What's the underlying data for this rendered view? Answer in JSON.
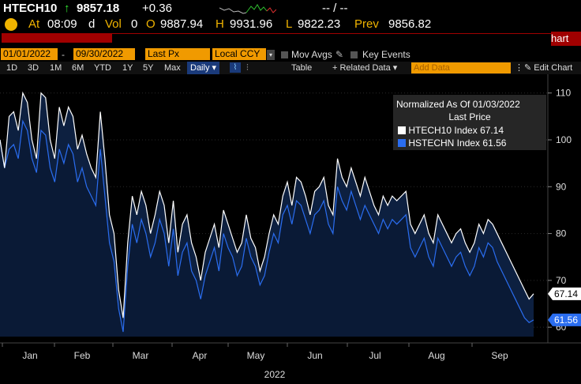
{
  "header": {
    "ticker": "HTECH10",
    "arrow": "↑",
    "price": "9857.18",
    "change": "+0.36",
    "bid_ask": "-- / --",
    "at_label": "At",
    "time": "08:09",
    "time_suffix": "d",
    "vol_label": "Vol",
    "vol_value": "0",
    "open_label": "O",
    "open_value": "9887.94",
    "high_label": "H",
    "high_value": "9931.96",
    "low_label": "L",
    "low_value": "9822.23",
    "prev_label": "Prev",
    "prev_value": "9856.82",
    "tab_right": "hart"
  },
  "toolbar": {
    "start_date": "01/01/2022",
    "end_date": "09/30/2022",
    "price_field": "Last Px",
    "currency": "Local CCY",
    "mov_avgs": "Mov Avgs",
    "key_events": "Key Events",
    "periods": [
      "1D",
      "3D",
      "1M",
      "6M",
      "YTD",
      "1Y",
      "5Y",
      "Max"
    ],
    "frequency": "Daily",
    "table": "Table",
    "related_data": "+ Related Data",
    "add_data_placeholder": "Add Data",
    "edit_chart": "Edit Chart"
  },
  "chart_data": {
    "type": "area",
    "title": "Normalized As Of 01/03/2022",
    "subtitle": "Last Price",
    "xlabel": "2022",
    "ylabel": "",
    "ylim": [
      58,
      114
    ],
    "y_ticks": [
      60,
      70,
      80,
      90,
      100,
      110
    ],
    "x_tick_labels": [
      "Jan",
      "Feb",
      "Mar",
      "Apr",
      "May",
      "Jun",
      "Jul",
      "Aug",
      "Sep"
    ],
    "legend_position": "top-right",
    "series": [
      {
        "name": "HTECH10 Index",
        "color": "#ffffff",
        "last_value": "67.14",
        "values": [
          100,
          94,
          105,
          106,
          102,
          110,
          108,
          100,
          96,
          110,
          109,
          100,
          96,
          107,
          103,
          107,
          105,
          98,
          101,
          97,
          94,
          92,
          106,
          96,
          84,
          80,
          68,
          62,
          78,
          88,
          84,
          89,
          86,
          80,
          84,
          89,
          86,
          78,
          87,
          76,
          82,
          84,
          78,
          75,
          70,
          76,
          79,
          82,
          77,
          85,
          82,
          79,
          76,
          78,
          84,
          79,
          77,
          72,
          75,
          80,
          84,
          82,
          88,
          91,
          86,
          92,
          91,
          88,
          84,
          89,
          90,
          92,
          86,
          84,
          96,
          92,
          90,
          94,
          91,
          88,
          92,
          89,
          86,
          84,
          88,
          86,
          88,
          87,
          88,
          89,
          82,
          80,
          82,
          84,
          80,
          78,
          84,
          82,
          80,
          78,
          80,
          81,
          78,
          76,
          78,
          82,
          80,
          83,
          82,
          80,
          78,
          76,
          74,
          72,
          70,
          68,
          66,
          67.14
        ]
      },
      {
        "name": "HSTECHN Index",
        "color": "#2a6df0",
        "last_value": "61.56",
        "values": [
          100,
          94,
          98,
          99,
          96,
          104,
          102,
          96,
          93,
          102,
          101,
          94,
          91,
          98,
          95,
          99,
          97,
          91,
          94,
          90,
          88,
          86,
          98,
          88,
          78,
          74,
          64,
          59,
          73,
          82,
          78,
          83,
          80,
          75,
          78,
          83,
          80,
          73,
          81,
          71,
          76,
          78,
          72,
          70,
          66,
          71,
          74,
          77,
          72,
          80,
          77,
          75,
          71,
          73,
          79,
          75,
          73,
          69,
          71,
          76,
          80,
          78,
          84,
          86,
          82,
          87,
          86,
          83,
          80,
          84,
          85,
          87,
          82,
          80,
          90,
          87,
          85,
          89,
          86,
          83,
          86,
          84,
          82,
          80,
          83,
          81,
          83,
          82,
          83,
          84,
          77,
          75,
          77,
          79,
          75,
          73,
          79,
          77,
          75,
          73,
          75,
          76,
          73,
          71,
          73,
          77,
          75,
          78,
          77,
          74,
          72,
          70,
          68,
          66,
          64,
          62,
          61,
          61.56
        ]
      }
    ]
  }
}
